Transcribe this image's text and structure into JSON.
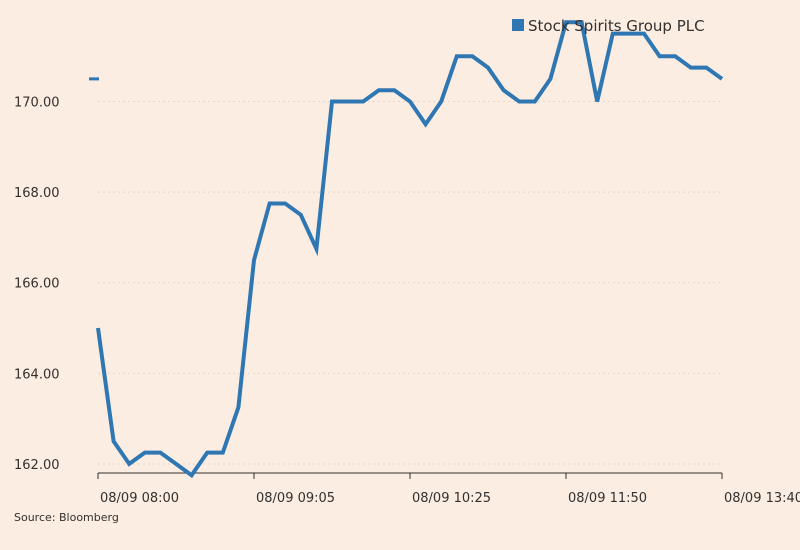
{
  "chart_data": {
    "type": "line",
    "title": "",
    "xlabel": "",
    "ylabel": "",
    "ylim": [
      161.8,
      171.8
    ],
    "y_ticks": [
      162,
      164,
      166,
      168,
      170
    ],
    "y_tick_labels": [
      "162.00",
      "164.00",
      "166.00",
      "168.00",
      "170.00"
    ],
    "x_tick_labels": [
      "08/09 08:00",
      "08/09 09:05",
      "08/09 10:25",
      "08/09 11:50",
      "08/09 13:40"
    ],
    "grid": true,
    "legend_position": "top-right",
    "series": [
      {
        "name": "Stock Spirits Group PLC",
        "color": "#2f77b3",
        "values": [
          165.0,
          162.5,
          162.0,
          162.25,
          162.25,
          162.0,
          161.75,
          162.25,
          162.25,
          163.25,
          166.5,
          167.75,
          167.75,
          167.5,
          166.75,
          170.0,
          170.0,
          170.0,
          170.25,
          170.25,
          170.0,
          169.5,
          170.0,
          171.0,
          171.0,
          170.75,
          170.25,
          170.0,
          170.0,
          170.5,
          171.75,
          171.75,
          170.0,
          171.5,
          171.5,
          171.5,
          171.0,
          171.0,
          170.75,
          170.75,
          170.5
        ]
      }
    ]
  },
  "legend": {
    "label": "Stock Spirits Group PLC",
    "color": "#2f77b3"
  },
  "source": "Source: Bloomberg",
  "colors": {
    "background": "#fbede2",
    "grid": "#e3d6cc",
    "axis": "#33302e",
    "line": "#2f77b3"
  }
}
